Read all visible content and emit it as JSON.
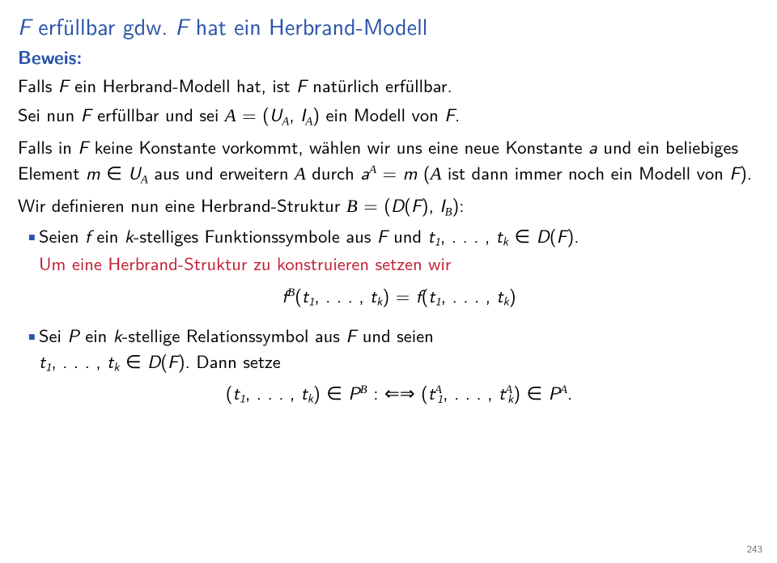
{
  "colors": {
    "text": "#000000",
    "accent_blue": "#2a54a9",
    "accent_red": "#c02035",
    "background": "#ffffff",
    "pageno": "#707070"
  },
  "fontsizes": {
    "title": 28,
    "body": 22.5,
    "pageno": 13
  },
  "title_part1": "F",
  "title_part2": " erfüllbar gdw. ",
  "title_part3": "F",
  "title_part4": " hat ein Herbrand-Modell",
  "proof_label": "Beweis:",
  "p1a": "Falls ",
  "p1b": "F",
  "p1c": " ein Herbrand-Modell hat, ist ",
  "p1d": "F",
  "p1e": " natürlich erfüllbar.",
  "p2a": "Sei nun ",
  "p2b": "F",
  "p2c": " erfüllbar und sei ",
  "p2_calA": "A",
  "p2_eq": " = (",
  "p2_U": "U",
  "p2_comma": ", ",
  "p2_I": "I",
  "p2d": ") ein Modell von ",
  "p2e": "F",
  "p2f": ".",
  "p3a": "Falls in ",
  "p3b": "F",
  "p3c": " keine Konstante vorkommt, wählen wir uns eine neue Konstante ",
  "p3_a": "a",
  "p3d": " und ein beliebiges Element ",
  "p3_m": "m",
  "p3_in": " ∈ ",
  "p3_U": "U",
  "p3e": " aus und erweitern ",
  "p3f": " durch ",
  "p3_aA": "a",
  "p3_eq": " = ",
  "p3_m2": "m",
  "p3_open": " (",
  "p3g": " ist dann immer noch ein Modell von ",
  "p3_F2": "F",
  "p3h": ").",
  "p4a": "Wir definieren nun eine Herbrand-Struktur ",
  "p4_calB": "B",
  "p4_eq": " = (",
  "p4_D": "D",
  "p4_paren": "(",
  "p4_F": "F",
  "p4_cl": ")",
  "p4_comma": ", ",
  "p4_I": "I",
  "p4_end": "):",
  "li1a": "Seien ",
  "li1_f": "f",
  "li1b": " ein ",
  "li1_k": "k",
  "li1c": "-stelliges Funktionssymbole aus ",
  "li1_F": "F",
  "li1d": " und ",
  "li1_t1": "t",
  "li1_1": "1",
  "li1_comma": ", . . . , ",
  "li1_tk_t": "t",
  "li1_tk_k": "k",
  "li1_in": " ∈ ",
  "li1_D": "D",
  "li1_paren": "(",
  "li1_F2": "F",
  "li1_cl": ").",
  "li1_red": "Um eine Herbrand-Struktur zu konstruieren setzen wir",
  "eq1_f": "f",
  "eq1_B": "B",
  "eq1_open": "(",
  "eq1_t": "t",
  "eq1_1": "1",
  "eq1_comma": ", . . . , ",
  "eq1_tk_t": "t",
  "eq1_k": "k",
  "eq1_close": ") = ",
  "eq1_f2": "f",
  "eq1_open2": "(",
  "eq1_close2": ")",
  "li2a": "Sei ",
  "li2_P": "P",
  "li2b": " ein ",
  "li2_k": "k",
  "li2c": "-stellige Relationssymbol aus ",
  "li2_F": "F",
  "li2d": " und seien",
  "li2_t": "t",
  "li2_1": "1",
  "li2_comma": ", . . . , ",
  "li2_tk_t": "t",
  "li2_kk": "k",
  "li2_in": " ∈ ",
  "li2_D": "D",
  "li2_paren": "(",
  "li2_F2": "F",
  "li2_cl": "). Dann setze",
  "eq2_open": "(",
  "eq2_t": "t",
  "eq2_1": "1",
  "eq2_comma": ", . . . , ",
  "eq2_tk_t": "t",
  "eq2_k": "k",
  "eq2_close": ") ∈ ",
  "eq2_P": "P",
  "eq2_B": "B",
  "eq2_iff": " :  ⇐⇒  (",
  "eq2_tA_t": "t",
  "eq2_tA_A": "A",
  "eq2_tA_1": "1",
  "eq2_close2": ") ∈ ",
  "eq2_P2": "P",
  "eq2_A": "A",
  "eq2_dot": ".",
  "pageno": "243"
}
